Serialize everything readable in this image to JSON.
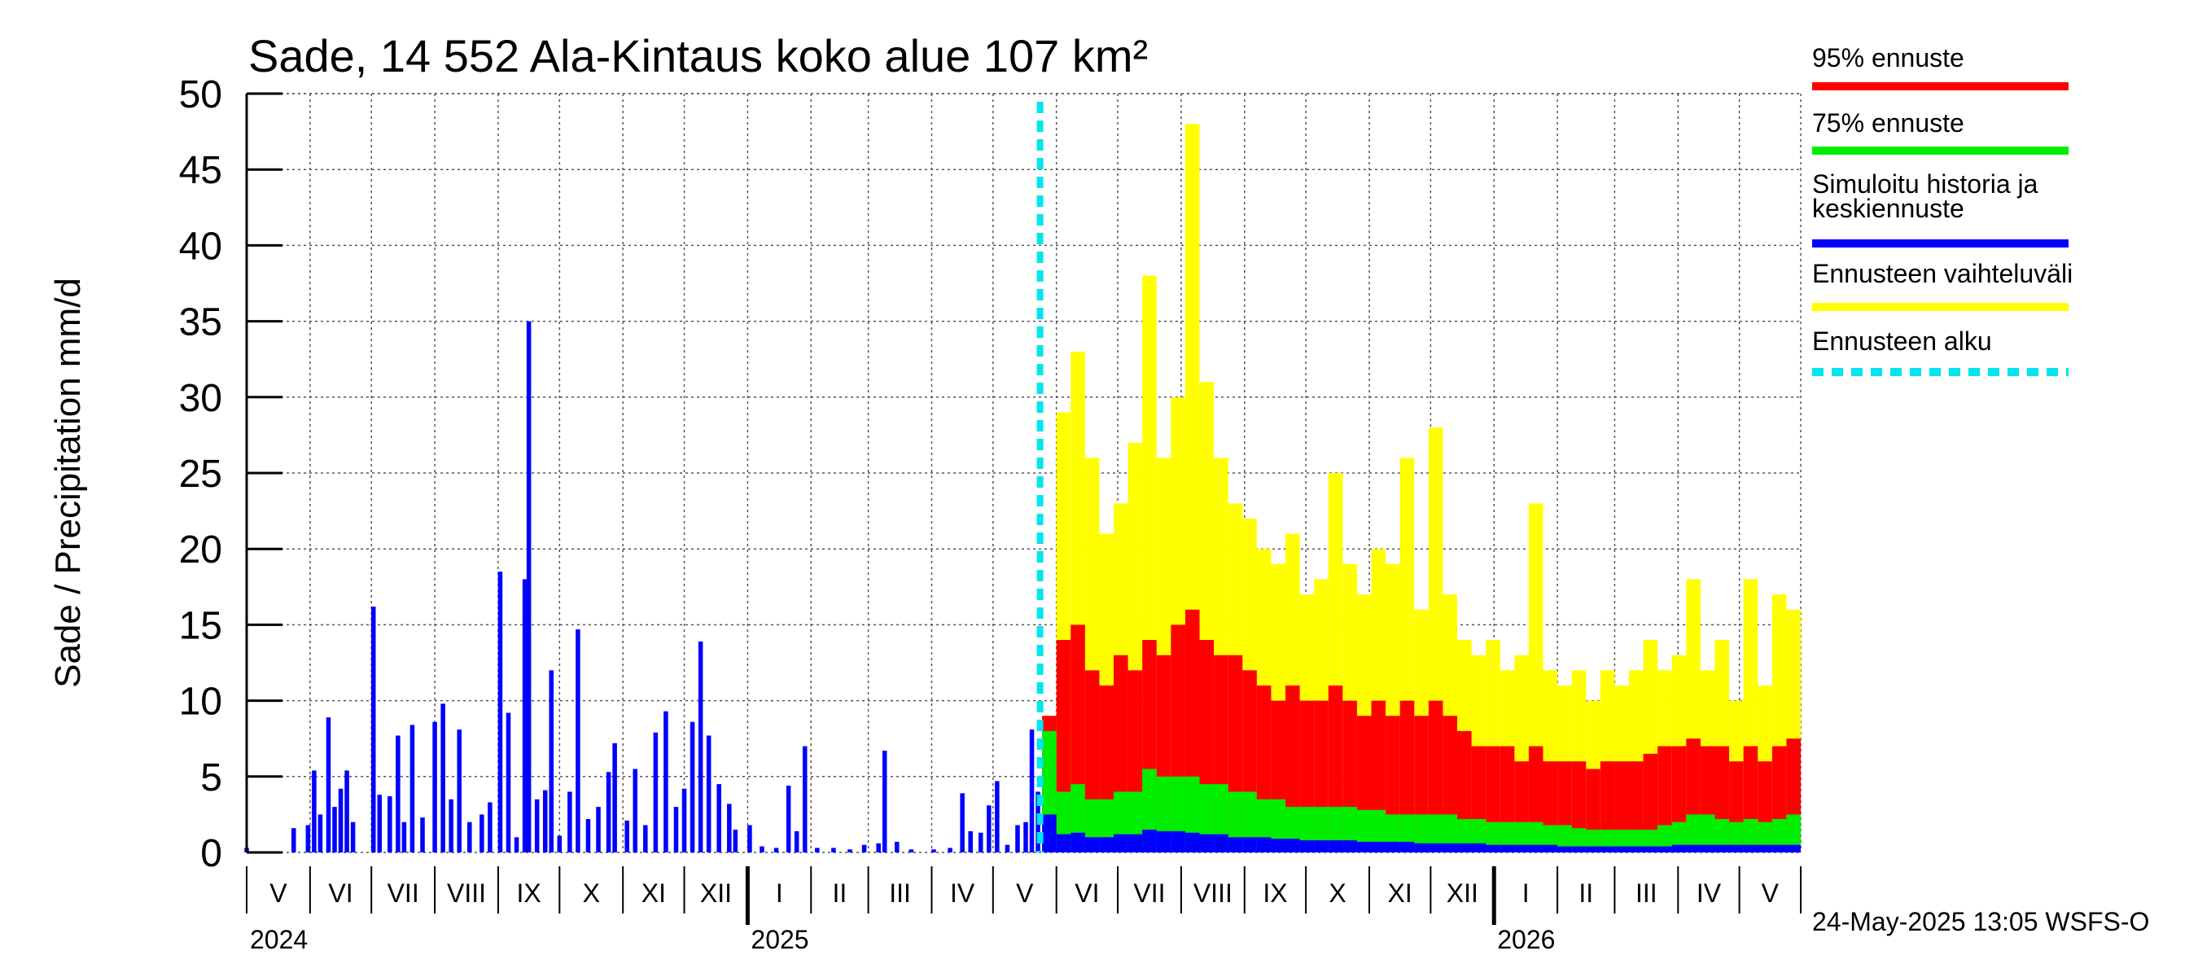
{
  "chart_data": {
    "type": "bar",
    "title": "Sade, 14 552 Ala-Kintaus koko alue 107 km²",
    "ylabel": "Sade / Precipitation   mm/d",
    "ylim": [
      0,
      50
    ],
    "yticks": [
      "0",
      "5",
      "10",
      "15",
      "20",
      "25",
      "30",
      "35",
      "40",
      "45",
      "50"
    ],
    "grid": true,
    "x_range": [
      "2024-05-01",
      "2026-05-31"
    ],
    "forecast_start": "2025-05-24",
    "month_labels": [
      "V",
      "VI",
      "VII",
      "VIII",
      "IX",
      "X",
      "XI",
      "XII",
      "I",
      "II",
      "III",
      "IV",
      "V",
      "VI",
      "VII",
      "VIII",
      "IX",
      "X",
      "XI",
      "XII",
      "I",
      "II",
      "III",
      "IV",
      "V"
    ],
    "year_labels": [
      "2024",
      "2025",
      "2026"
    ],
    "legend": [
      {
        "label": "95% ennuste",
        "color": "#ff0000"
      },
      {
        "label": "75% ennuste",
        "color": "#00ee00"
      },
      {
        "label": "Simuloitu historia ja",
        "label2": "keskiennuste",
        "color": "#0000ff"
      },
      {
        "label": "Ennusteen vaihteluväli",
        "color": "#ffff00"
      },
      {
        "label": "Ennusteen alku",
        "color": "#00e5ee"
      }
    ],
    "history_series": [
      {
        "date": "2024-05-01",
        "value": 0.3
      },
      {
        "date": "2024-05-24",
        "value": 1.6
      },
      {
        "date": "2024-05-31",
        "value": 1.8
      },
      {
        "date": "2024-06-03",
        "value": 5.4
      },
      {
        "date": "2024-06-06",
        "value": 2.5
      },
      {
        "date": "2024-06-10",
        "value": 8.9
      },
      {
        "date": "2024-06-13",
        "value": 3.0
      },
      {
        "date": "2024-06-16",
        "value": 4.2
      },
      {
        "date": "2024-06-19",
        "value": 5.4
      },
      {
        "date": "2024-06-22",
        "value": 2.0
      },
      {
        "date": "2024-07-02",
        "value": 16.2
      },
      {
        "date": "2024-07-05",
        "value": 3.8
      },
      {
        "date": "2024-07-10",
        "value": 3.7
      },
      {
        "date": "2024-07-14",
        "value": 7.7
      },
      {
        "date": "2024-07-17",
        "value": 2.0
      },
      {
        "date": "2024-07-21",
        "value": 8.4
      },
      {
        "date": "2024-07-26",
        "value": 2.3
      },
      {
        "date": "2024-08-01",
        "value": 8.6
      },
      {
        "date": "2024-08-05",
        "value": 9.8
      },
      {
        "date": "2024-08-09",
        "value": 3.5
      },
      {
        "date": "2024-08-13",
        "value": 8.1
      },
      {
        "date": "2024-08-18",
        "value": 2.0
      },
      {
        "date": "2024-08-24",
        "value": 2.5
      },
      {
        "date": "2024-08-28",
        "value": 3.3
      },
      {
        "date": "2024-09-02",
        "value": 18.5
      },
      {
        "date": "2024-09-06",
        "value": 9.2
      },
      {
        "date": "2024-09-10",
        "value": 1.0
      },
      {
        "date": "2024-09-14",
        "value": 18.0
      },
      {
        "date": "2024-09-16",
        "value": 35.0
      },
      {
        "date": "2024-09-20",
        "value": 3.5
      },
      {
        "date": "2024-09-24",
        "value": 4.1
      },
      {
        "date": "2024-09-27",
        "value": 12.0
      },
      {
        "date": "2024-10-01",
        "value": 1.1
      },
      {
        "date": "2024-10-06",
        "value": 4.0
      },
      {
        "date": "2024-10-10",
        "value": 14.7
      },
      {
        "date": "2024-10-15",
        "value": 2.2
      },
      {
        "date": "2024-10-20",
        "value": 3.0
      },
      {
        "date": "2024-10-25",
        "value": 5.3
      },
      {
        "date": "2024-10-28",
        "value": 7.2
      },
      {
        "date": "2024-11-03",
        "value": 2.1
      },
      {
        "date": "2024-11-07",
        "value": 5.5
      },
      {
        "date": "2024-11-12",
        "value": 1.8
      },
      {
        "date": "2024-11-17",
        "value": 7.9
      },
      {
        "date": "2024-11-22",
        "value": 9.3
      },
      {
        "date": "2024-11-27",
        "value": 3.0
      },
      {
        "date": "2024-12-01",
        "value": 4.2
      },
      {
        "date": "2024-12-05",
        "value": 8.6
      },
      {
        "date": "2024-12-09",
        "value": 13.9
      },
      {
        "date": "2024-12-13",
        "value": 7.7
      },
      {
        "date": "2024-12-18",
        "value": 4.5
      },
      {
        "date": "2024-12-23",
        "value": 3.2
      },
      {
        "date": "2024-12-26",
        "value": 1.5
      },
      {
        "date": "2025-01-02",
        "value": 1.8
      },
      {
        "date": "2025-01-08",
        "value": 0.4
      },
      {
        "date": "2025-01-15",
        "value": 0.3
      },
      {
        "date": "2025-01-21",
        "value": 4.4
      },
      {
        "date": "2025-01-25",
        "value": 1.4
      },
      {
        "date": "2025-01-29",
        "value": 7.0
      },
      {
        "date": "2025-02-04",
        "value": 0.3
      },
      {
        "date": "2025-02-12",
        "value": 0.3
      },
      {
        "date": "2025-02-20",
        "value": 0.2
      },
      {
        "date": "2025-02-27",
        "value": 0.5
      },
      {
        "date": "2025-03-06",
        "value": 0.6
      },
      {
        "date": "2025-03-09",
        "value": 6.7
      },
      {
        "date": "2025-03-15",
        "value": 0.7
      },
      {
        "date": "2025-03-22",
        "value": 0.2
      },
      {
        "date": "2025-04-02",
        "value": 0.2
      },
      {
        "date": "2025-04-10",
        "value": 0.3
      },
      {
        "date": "2025-04-16",
        "value": 3.9
      },
      {
        "date": "2025-04-20",
        "value": 1.4
      },
      {
        "date": "2025-04-25",
        "value": 1.3
      },
      {
        "date": "2025-04-29",
        "value": 3.1
      },
      {
        "date": "2025-05-03",
        "value": 4.7
      },
      {
        "date": "2025-05-08",
        "value": 0.5
      },
      {
        "date": "2025-05-13",
        "value": 1.8
      },
      {
        "date": "2025-05-17",
        "value": 2.0
      },
      {
        "date": "2025-05-20",
        "value": 8.1
      },
      {
        "date": "2025-05-23",
        "value": 4.0
      }
    ],
    "forecast_series": [
      {
        "date": "2025-05-25",
        "yellow": 9,
        "red": 9,
        "green": 8,
        "blue": 2.5
      },
      {
        "date": "2025-06-01",
        "yellow": 29,
        "red": 14,
        "green": 4,
        "blue": 1.2
      },
      {
        "date": "2025-06-08",
        "yellow": 33,
        "red": 15,
        "green": 4.5,
        "blue": 1.3
      },
      {
        "date": "2025-06-15",
        "yellow": 26,
        "red": 12,
        "green": 3.5,
        "blue": 1.0
      },
      {
        "date": "2025-06-22",
        "yellow": 21,
        "red": 11,
        "green": 3.5,
        "blue": 1.0
      },
      {
        "date": "2025-06-29",
        "yellow": 23,
        "red": 13,
        "green": 4,
        "blue": 1.2
      },
      {
        "date": "2025-07-06",
        "yellow": 27,
        "red": 12,
        "green": 4,
        "blue": 1.2
      },
      {
        "date": "2025-07-13",
        "yellow": 38,
        "red": 14,
        "green": 5.5,
        "blue": 1.5
      },
      {
        "date": "2025-07-20",
        "yellow": 26,
        "red": 13,
        "green": 5,
        "blue": 1.4
      },
      {
        "date": "2025-07-27",
        "yellow": 30,
        "red": 15,
        "green": 5,
        "blue": 1.4
      },
      {
        "date": "2025-08-03",
        "yellow": 48,
        "red": 16,
        "green": 5,
        "blue": 1.3
      },
      {
        "date": "2025-08-10",
        "yellow": 31,
        "red": 14,
        "green": 4.5,
        "blue": 1.2
      },
      {
        "date": "2025-08-17",
        "yellow": 26,
        "red": 13,
        "green": 4.5,
        "blue": 1.2
      },
      {
        "date": "2025-08-24",
        "yellow": 23,
        "red": 13,
        "green": 4,
        "blue": 1.0
      },
      {
        "date": "2025-08-31",
        "yellow": 22,
        "red": 12,
        "green": 4,
        "blue": 1.0
      },
      {
        "date": "2025-09-07",
        "yellow": 20,
        "red": 11,
        "green": 3.5,
        "blue": 1.0
      },
      {
        "date": "2025-09-14",
        "yellow": 19,
        "red": 10,
        "green": 3.5,
        "blue": 0.9
      },
      {
        "date": "2025-09-21",
        "yellow": 21,
        "red": 11,
        "green": 3,
        "blue": 0.9
      },
      {
        "date": "2025-09-28",
        "yellow": 17,
        "red": 10,
        "green": 3,
        "blue": 0.8
      },
      {
        "date": "2025-10-05",
        "yellow": 18,
        "red": 10,
        "green": 3,
        "blue": 0.8
      },
      {
        "date": "2025-10-12",
        "yellow": 25,
        "red": 11,
        "green": 3,
        "blue": 0.8
      },
      {
        "date": "2025-10-19",
        "yellow": 19,
        "red": 10,
        "green": 3,
        "blue": 0.8
      },
      {
        "date": "2025-10-26",
        "yellow": 17,
        "red": 9,
        "green": 2.8,
        "blue": 0.7
      },
      {
        "date": "2025-11-02",
        "yellow": 20,
        "red": 10,
        "green": 2.8,
        "blue": 0.7
      },
      {
        "date": "2025-11-09",
        "yellow": 19,
        "red": 9,
        "green": 2.5,
        "blue": 0.7
      },
      {
        "date": "2025-11-16",
        "yellow": 26,
        "red": 10,
        "green": 2.5,
        "blue": 0.7
      },
      {
        "date": "2025-11-23",
        "yellow": 16,
        "red": 9,
        "green": 2.5,
        "blue": 0.6
      },
      {
        "date": "2025-11-30",
        "yellow": 28,
        "red": 10,
        "green": 2.5,
        "blue": 0.6
      },
      {
        "date": "2025-12-07",
        "yellow": 17,
        "red": 9,
        "green": 2.5,
        "blue": 0.6
      },
      {
        "date": "2025-12-14",
        "yellow": 14,
        "red": 8,
        "green": 2.2,
        "blue": 0.6
      },
      {
        "date": "2025-12-21",
        "yellow": 13,
        "red": 7,
        "green": 2.2,
        "blue": 0.6
      },
      {
        "date": "2025-12-28",
        "yellow": 14,
        "red": 7,
        "green": 2,
        "blue": 0.5
      },
      {
        "date": "2026-01-04",
        "yellow": 12,
        "red": 7,
        "green": 2,
        "blue": 0.5
      },
      {
        "date": "2026-01-11",
        "yellow": 13,
        "red": 6,
        "green": 2,
        "blue": 0.5
      },
      {
        "date": "2026-01-18",
        "yellow": 23,
        "red": 7,
        "green": 2,
        "blue": 0.5
      },
      {
        "date": "2026-01-25",
        "yellow": 12,
        "red": 6,
        "green": 1.8,
        "blue": 0.5
      },
      {
        "date": "2026-02-01",
        "yellow": 11,
        "red": 6,
        "green": 1.8,
        "blue": 0.4
      },
      {
        "date": "2026-02-08",
        "yellow": 12,
        "red": 6,
        "green": 1.6,
        "blue": 0.4
      },
      {
        "date": "2026-02-15",
        "yellow": 10,
        "red": 5.5,
        "green": 1.5,
        "blue": 0.4
      },
      {
        "date": "2026-02-22",
        "yellow": 12,
        "red": 6,
        "green": 1.5,
        "blue": 0.4
      },
      {
        "date": "2026-03-01",
        "yellow": 11,
        "red": 6,
        "green": 1.5,
        "blue": 0.4
      },
      {
        "date": "2026-03-08",
        "yellow": 12,
        "red": 6,
        "green": 1.5,
        "blue": 0.4
      },
      {
        "date": "2026-03-15",
        "yellow": 14,
        "red": 6.5,
        "green": 1.5,
        "blue": 0.4
      },
      {
        "date": "2026-03-22",
        "yellow": 12,
        "red": 7,
        "green": 1.8,
        "blue": 0.4
      },
      {
        "date": "2026-03-29",
        "yellow": 13,
        "red": 7,
        "green": 2,
        "blue": 0.5
      },
      {
        "date": "2026-04-05",
        "yellow": 18,
        "red": 7.5,
        "green": 2.5,
        "blue": 0.5
      },
      {
        "date": "2026-04-12",
        "yellow": 12,
        "red": 7,
        "green": 2.5,
        "blue": 0.5
      },
      {
        "date": "2026-04-19",
        "yellow": 14,
        "red": 7,
        "green": 2.2,
        "blue": 0.5
      },
      {
        "date": "2026-04-26",
        "yellow": 10,
        "red": 6,
        "green": 2,
        "blue": 0.5
      },
      {
        "date": "2026-05-03",
        "yellow": 18,
        "red": 7,
        "green": 2.2,
        "blue": 0.5
      },
      {
        "date": "2026-05-10",
        "yellow": 11,
        "red": 6,
        "green": 2,
        "blue": 0.5
      },
      {
        "date": "2026-05-17",
        "yellow": 17,
        "red": 7,
        "green": 2.2,
        "blue": 0.5
      },
      {
        "date": "2026-05-24",
        "yellow": 16,
        "red": 7.5,
        "green": 2.5,
        "blue": 0.5
      }
    ]
  },
  "footer": "24-May-2025 13:05 WSFS-O"
}
